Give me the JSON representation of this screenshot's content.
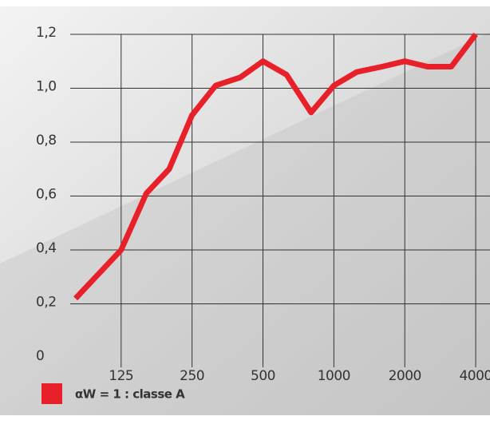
{
  "chart_data": {
    "type": "line",
    "x": [
      80,
      125,
      160,
      200,
      250,
      315,
      400,
      500,
      630,
      800,
      1000,
      1250,
      1600,
      2000,
      2500,
      3150,
      4000
    ],
    "series": [
      {
        "name": "αW = 1 : classe A",
        "color": "#e8202a",
        "values": [
          0.22,
          0.4,
          0.61,
          0.7,
          0.9,
          1.01,
          1.04,
          1.1,
          1.05,
          0.91,
          1.01,
          1.06,
          1.08,
          1.1,
          1.08,
          1.08,
          1.2
        ]
      }
    ],
    "xscale": "log",
    "xlim": [
      76,
      4600
    ],
    "xticks": [
      125,
      250,
      500,
      1000,
      2000,
      4000
    ],
    "ylim": [
      0,
      1.2
    ],
    "yticks": [
      0,
      {
        "value": 0.2,
        "label": "0,2"
      },
      {
        "value": 0.4,
        "label": "0,4"
      },
      {
        "value": 0.6,
        "label": "0,6"
      },
      {
        "value": 0.8,
        "label": "0,8"
      },
      {
        "value": 1.0,
        "label": "1,0"
      },
      {
        "value": 1.2,
        "label": "1,2"
      }
    ],
    "grid": true
  }
}
